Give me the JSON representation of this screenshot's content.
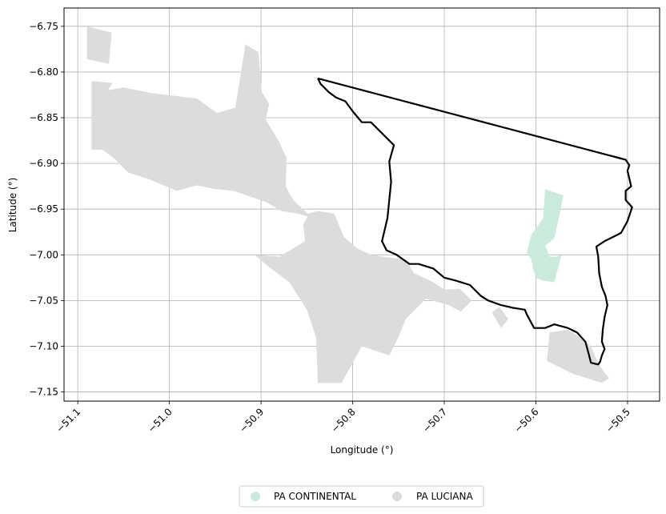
{
  "chart_data": {
    "type": "map",
    "xlabel": "Longitude (°)",
    "ylabel": "Latitude (°)",
    "xlim": [
      -51.115,
      -50.465
    ],
    "ylim": [
      -7.16,
      -6.73
    ],
    "grid": true,
    "x_ticks": [
      -51.1,
      -51.0,
      -50.9,
      -50.8,
      -50.7,
      -50.6,
      -50.5
    ],
    "x_tick_labels": [
      "−51.1",
      "−51.0",
      "−50.9",
      "−50.8",
      "−50.7",
      "−50.6",
      "−50.5"
    ],
    "y_ticks": [
      -6.75,
      -6.8,
      -6.85,
      -6.9,
      -6.95,
      -7.0,
      -7.05,
      -7.1,
      -7.15
    ],
    "y_tick_labels": [
      "−6.75",
      "−6.80",
      "−6.85",
      "−6.90",
      "−6.95",
      "−7.00",
      "−7.05",
      "−7.10",
      "−7.15"
    ],
    "legend_position": "bottom-center",
    "layers": [
      {
        "name": "PA LUCIANA",
        "color": "#dcdcdc",
        "polygons": [
          [
            [
              -51.09,
              -6.75
            ],
            [
              -51.063,
              -6.757
            ],
            [
              -51.066,
              -6.791
            ],
            [
              -51.09,
              -6.786
            ]
          ],
          [
            [
              -51.085,
              -6.81
            ],
            [
              -51.062,
              -6.812
            ],
            [
              -51.067,
              -6.82
            ],
            [
              -51.05,
              -6.817
            ],
            [
              -51.02,
              -6.823
            ],
            [
              -50.97,
              -6.829
            ],
            [
              -50.948,
              -6.845
            ],
            [
              -50.928,
              -6.839
            ],
            [
              -50.917,
              -6.77
            ],
            [
              -50.903,
              -6.778
            ],
            [
              -50.899,
              -6.822
            ],
            [
              -50.891,
              -6.835
            ],
            [
              -50.895,
              -6.852
            ],
            [
              -50.881,
              -6.875
            ],
            [
              -50.872,
              -6.894
            ],
            [
              -50.873,
              -6.925
            ],
            [
              -50.865,
              -6.94
            ],
            [
              -50.849,
              -6.955
            ],
            [
              -50.838,
              -6.952
            ],
            [
              -50.82,
              -6.955
            ],
            [
              -50.81,
              -6.98
            ],
            [
              -50.795,
              -6.993
            ],
            [
              -50.78,
              -7.0
            ],
            [
              -50.76,
              -7.003
            ],
            [
              -50.742,
              -7.005
            ],
            [
              -50.733,
              -7.02
            ],
            [
              -50.712,
              -7.03
            ],
            [
              -50.7,
              -7.038
            ],
            [
              -50.683,
              -7.037
            ],
            [
              -50.67,
              -7.05
            ],
            [
              -50.682,
              -7.062
            ],
            [
              -50.695,
              -7.055
            ],
            [
              -50.72,
              -7.048
            ],
            [
              -50.742,
              -7.07
            ],
            [
              -50.75,
              -7.09
            ],
            [
              -50.76,
              -7.11
            ],
            [
              -50.79,
              -7.1
            ],
            [
              -50.812,
              -7.14
            ],
            [
              -50.838,
              -7.14
            ],
            [
              -50.84,
              -7.09
            ],
            [
              -50.85,
              -7.06
            ],
            [
              -50.869,
              -7.03
            ],
            [
              -50.893,
              -7.012
            ],
            [
              -50.907,
              -7.0
            ],
            [
              -50.88,
              -7.002
            ],
            [
              -50.852,
              -6.985
            ],
            [
              -50.854,
              -6.967
            ],
            [
              -50.849,
              -6.958
            ],
            [
              -50.86,
              -6.955
            ],
            [
              -50.878,
              -6.952
            ],
            [
              -50.895,
              -6.942
            ],
            [
              -50.93,
              -6.93
            ],
            [
              -50.95,
              -6.928
            ],
            [
              -50.97,
              -6.924
            ],
            [
              -50.992,
              -6.93
            ],
            [
              -51.02,
              -6.918
            ],
            [
              -51.045,
              -6.91
            ],
            [
              -51.06,
              -6.895
            ],
            [
              -51.073,
              -6.885
            ],
            [
              -51.085,
              -6.885
            ]
          ],
          [
            [
              -50.63,
              -7.07
            ],
            [
              -50.638,
              -7.08
            ],
            [
              -50.648,
              -7.063
            ],
            [
              -50.64,
              -7.057
            ]
          ],
          [
            [
              -50.585,
              -7.085
            ],
            [
              -50.565,
              -7.082
            ],
            [
              -50.552,
              -7.09
            ],
            [
              -50.54,
              -7.1
            ],
            [
              -50.535,
              -7.112
            ],
            [
              -50.528,
              -7.125
            ],
            [
              -50.52,
              -7.135
            ],
            [
              -50.528,
              -7.14
            ],
            [
              -50.56,
              -7.13
            ],
            [
              -50.588,
              -7.116
            ]
          ]
        ]
      },
      {
        "name": "PA CONTINENTAL",
        "color": "#cbeadc",
        "polygons": [
          [
            [
              -50.59,
              -6.928
            ],
            [
              -50.57,
              -6.935
            ],
            [
              -50.575,
              -6.96
            ],
            [
              -50.58,
              -6.982
            ],
            [
              -50.59,
              -6.99
            ],
            [
              -50.585,
              -7.002
            ],
            [
              -50.578,
              -7.002
            ],
            [
              -50.572,
              -7.0
            ],
            [
              -50.58,
              -7.03
            ],
            [
              -50.593,
              -7.028
            ],
            [
              -50.6,
              -7.025
            ],
            [
              -50.603,
              -7.015
            ],
            [
              -50.605,
              -7.005
            ],
            [
              -50.61,
              -6.998
            ],
            [
              -50.605,
              -6.978
            ],
            [
              -50.592,
              -6.96
            ]
          ]
        ]
      }
    ],
    "outline": {
      "color": "#000000",
      "points": [
        [
          -50.838,
          -6.807
        ],
        [
          -50.502,
          -6.896
        ],
        [
          -50.498,
          -6.902
        ],
        [
          -50.5,
          -6.908
        ],
        [
          -50.496,
          -6.925
        ],
        [
          -50.502,
          -6.93
        ],
        [
          -50.502,
          -6.94
        ],
        [
          -50.495,
          -6.948
        ],
        [
          -50.5,
          -6.963
        ],
        [
          -50.507,
          -6.976
        ],
        [
          -50.515,
          -6.98
        ],
        [
          -50.525,
          -6.985
        ],
        [
          -50.534,
          -6.991
        ],
        [
          -50.532,
          -7.002
        ],
        [
          -50.531,
          -7.02
        ],
        [
          -50.528,
          -7.035
        ],
        [
          -50.524,
          -7.045
        ],
        [
          -50.522,
          -7.055
        ],
        [
          -50.525,
          -7.068
        ],
        [
          -50.527,
          -7.082
        ],
        [
          -50.528,
          -7.095
        ],
        [
          -50.525,
          -7.103
        ],
        [
          -50.528,
          -7.11
        ],
        [
          -50.53,
          -7.117
        ],
        [
          -50.532,
          -7.12
        ],
        [
          -50.54,
          -7.118
        ],
        [
          -50.542,
          -7.11
        ],
        [
          -50.546,
          -7.095
        ],
        [
          -50.555,
          -7.085
        ],
        [
          -50.565,
          -7.08
        ],
        [
          -50.58,
          -7.076
        ],
        [
          -50.59,
          -7.08
        ],
        [
          -50.602,
          -7.08
        ],
        [
          -50.61,
          -7.065
        ],
        [
          -50.612,
          -7.06
        ],
        [
          -50.625,
          -7.058
        ],
        [
          -50.638,
          -7.055
        ],
        [
          -50.652,
          -7.05
        ],
        [
          -50.66,
          -7.045
        ],
        [
          -50.672,
          -7.033
        ],
        [
          -50.688,
          -7.028
        ],
        [
          -50.7,
          -7.025
        ],
        [
          -50.712,
          -7.015
        ],
        [
          -50.728,
          -7.01
        ],
        [
          -50.738,
          -7.01
        ],
        [
          -50.745,
          -7.005
        ],
        [
          -50.752,
          -7.0
        ],
        [
          -50.763,
          -6.995
        ],
        [
          -50.768,
          -6.985
        ],
        [
          -50.762,
          -6.96
        ],
        [
          -50.76,
          -6.94
        ],
        [
          -50.758,
          -6.92
        ],
        [
          -50.76,
          -6.898
        ],
        [
          -50.755,
          -6.88
        ],
        [
          -50.765,
          -6.87
        ],
        [
          -50.78,
          -6.855
        ],
        [
          -50.79,
          -6.855
        ],
        [
          -50.8,
          -6.843
        ],
        [
          -50.808,
          -6.832
        ],
        [
          -50.818,
          -6.828
        ],
        [
          -50.826,
          -6.822
        ],
        [
          -50.83,
          -6.818
        ],
        [
          -50.835,
          -6.813
        ],
        [
          -50.838,
          -6.807
        ]
      ]
    }
  }
}
